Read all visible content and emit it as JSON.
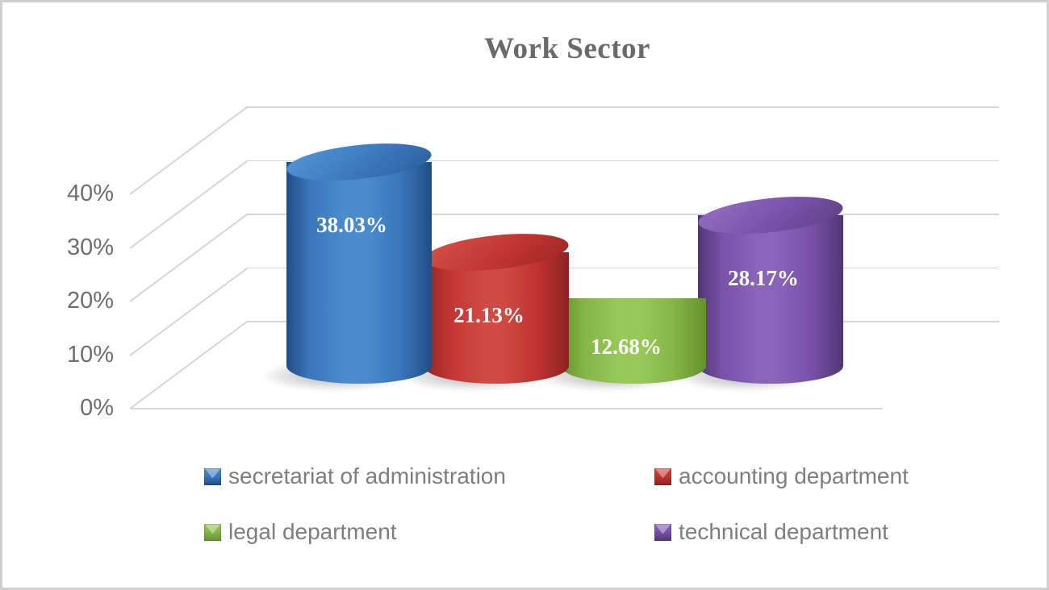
{
  "chart_data": {
    "type": "bar",
    "variant": "3d-cylinder",
    "title": "Work Sector",
    "categories": [
      "secretariat of administration",
      "accounting department",
      "legal department",
      "technical department"
    ],
    "values": [
      38.03,
      21.13,
      12.68,
      28.17
    ],
    "data_labels": [
      "38.03%",
      "21.13%",
      "12.68%",
      "28.17%"
    ],
    "series": [
      {
        "name": "secretariat of administration",
        "value": 38.03,
        "label": "38.03%",
        "colors": {
          "dark": "#1e4e85",
          "mid": "#3b76bb",
          "light": "#4c8ace",
          "top_light": "#4f8fd2",
          "top_dark": "#2a5f9e"
        }
      },
      {
        "name": "accounting department",
        "value": 21.13,
        "label": "21.13%",
        "colors": {
          "dark": "#8c2421",
          "mid": "#c03331",
          "light": "#cf4a42",
          "top_light": "#d04d45",
          "top_dark": "#9c2824"
        }
      },
      {
        "name": "legal department",
        "value": 12.68,
        "label": "12.68%",
        "colors": {
          "dark": "#64912e",
          "mid": "#85b545",
          "light": "#98c858",
          "top_light": "#9ccе5c",
          "top_dark": "#6fa135"
        }
      },
      {
        "name": "technical department",
        "value": 28.17,
        "label": "28.17%",
        "colors": {
          "dark": "#4f3775",
          "mid": "#7950a8",
          "light": "#8a64b8",
          "top_light": "#8f6abc",
          "top_dark": "#5b3f85"
        }
      }
    ],
    "y_axis": {
      "ticks": [
        "0%",
        "10%",
        "20%",
        "30%",
        "40%"
      ],
      "tick_values": [
        0,
        10,
        20,
        30,
        40
      ],
      "ylim": [
        0,
        40
      ]
    },
    "legend": {
      "position": "bottom",
      "columns": 2
    },
    "grid": true,
    "gridline_color": "#d6d6d6",
    "title_color": "#6a6a6a",
    "tick_label_color": "#6e6e6e",
    "legend_text_color": "#7e7e7e",
    "data_label_color": "#ffffff"
  }
}
